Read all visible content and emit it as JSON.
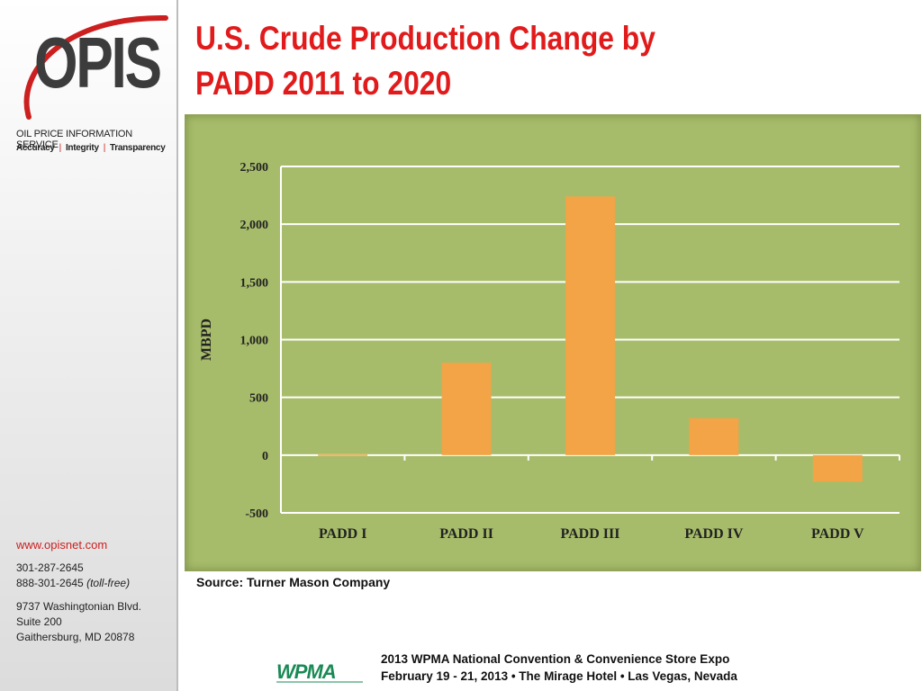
{
  "sidebar": {
    "logo_text": "OPIS",
    "logo_subtitle": "OIL PRICE INFORMATION SERVICE",
    "logo_tagline": [
      "Accuracy",
      "Integrity",
      "Transparency"
    ],
    "website": "www.opisnet.com",
    "phone": "301-287-2645",
    "tollfree_number": "888-301-2645",
    "tollfree_note": "(toll-free)",
    "address": [
      "9737 Washingtonian Blvd.",
      "Suite 200",
      "Gaithersburg, MD 20878"
    ]
  },
  "title_line1": "U.S. Crude Production Change by",
  "title_line2": "PADD 2011 to 2020",
  "source": "Source: Turner Mason Company",
  "footer": {
    "logo_text": "WPMA",
    "line1": "2013 WPMA National Convention & Convenience Store Expo",
    "line2": "February 19 - 21, 2013 • The Mirage Hotel • Las Vegas, Nevada"
  },
  "colors": {
    "title": "#e11b1b",
    "panel": "#a7bc6a",
    "bar": "#f2a446",
    "gridline": "#ffffff",
    "wpma": "#1a8a55"
  },
  "chart_data": {
    "type": "bar",
    "categories": [
      "PADD I",
      "PADD II",
      "PADD III",
      "PADD IV",
      "PADD V"
    ],
    "values": [
      5,
      800,
      2240,
      320,
      -230
    ],
    "ylabel": "MBPD",
    "xlabel": "",
    "ylim": [
      -500,
      2500
    ],
    "yticks": [
      -500,
      0,
      500,
      1000,
      1500,
      2000,
      2500
    ],
    "ytick_labels": [
      "-500",
      "0",
      "500",
      "1,000",
      "1,500",
      "2,000",
      "2,500"
    ],
    "grid": true,
    "legend": false
  }
}
